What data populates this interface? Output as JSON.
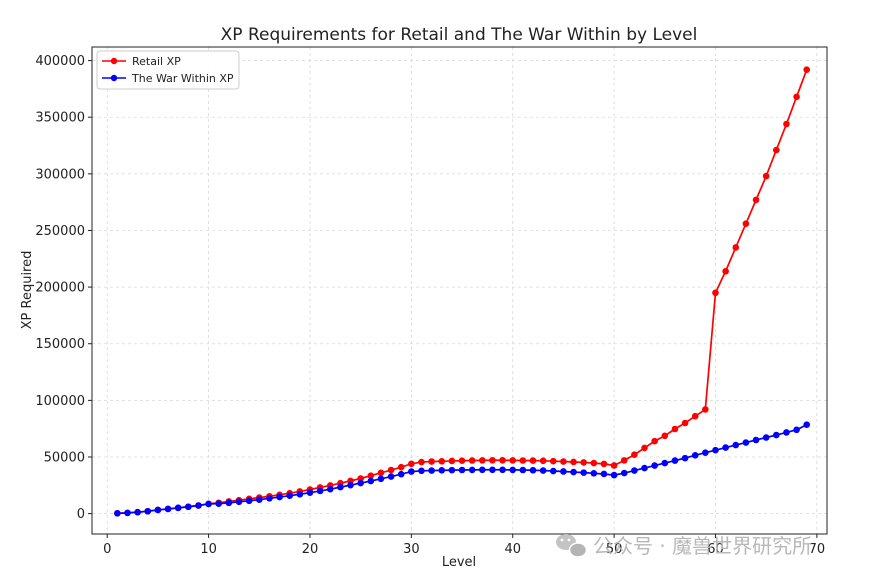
{
  "chart_data": {
    "type": "line",
    "title": "XP Requirements for Retail and The War Within by Level",
    "xlabel": "Level",
    "ylabel": "XP Required",
    "xlim": [
      -1.5,
      71
    ],
    "ylim": [
      -18000,
      412000
    ],
    "xticks": [
      0,
      10,
      20,
      30,
      40,
      50,
      60,
      70
    ],
    "yticks": [
      0,
      50000,
      100000,
      150000,
      200000,
      250000,
      300000,
      350000,
      400000
    ],
    "grid": true,
    "legend": "top-left",
    "x": [
      1,
      2,
      3,
      4,
      5,
      6,
      7,
      8,
      9,
      10,
      11,
      12,
      13,
      14,
      15,
      16,
      17,
      18,
      19,
      20,
      21,
      22,
      23,
      24,
      25,
      26,
      27,
      28,
      29,
      30,
      31,
      32,
      33,
      34,
      35,
      36,
      37,
      38,
      39,
      40,
      41,
      42,
      43,
      44,
      45,
      46,
      47,
      48,
      49,
      50,
      51,
      52,
      53,
      54,
      55,
      56,
      57,
      58,
      59,
      60,
      61,
      62,
      63,
      64,
      65,
      66,
      67,
      68,
      69
    ],
    "series": [
      {
        "name": "Retail XP",
        "color": "#ff0000",
        "values": [
          250,
          655,
          1265,
          2085,
          3240,
          4125,
          5085,
          6055,
          7175,
          8580,
          9575,
          10745,
          11845,
          13085,
          14135,
          15315,
          16605,
          18030,
          19590,
          21300,
          23100,
          24900,
          26900,
          28900,
          31000,
          33500,
          36000,
          38500,
          41000,
          44000,
          45500,
          46000,
          46200,
          46500,
          46700,
          46900,
          47000,
          47100,
          47100,
          47000,
          46900,
          46800,
          46600,
          46300,
          46000,
          45600,
          45200,
          44600,
          43900,
          42500,
          47000,
          52000,
          58000,
          64000,
          68700,
          74700,
          80000,
          86000,
          92000,
          195000,
          214000,
          235000,
          256000,
          277000,
          298000,
          321000,
          344000,
          368000,
          392000
        ]
      },
      {
        "name": "The War Within XP",
        "color": "#0000ff",
        "values": [
          250,
          655,
          1265,
          2085,
          3240,
          4125,
          5085,
          6055,
          7175,
          8580,
          8800,
          9500,
          10400,
          11300,
          12300,
          13500,
          14600,
          15800,
          17100,
          18500,
          20000,
          21600,
          23400,
          25100,
          27000,
          28800,
          30700,
          32700,
          34800,
          37100,
          37800,
          38000,
          38200,
          38400,
          38500,
          38600,
          38700,
          38700,
          38700,
          38600,
          38500,
          38300,
          38000,
          37600,
          37200,
          36700,
          36200,
          35600,
          35000,
          34000,
          35800,
          38000,
          40200,
          42400,
          44600,
          46800,
          49000,
          51500,
          53800,
          56000,
          58300,
          60500,
          62700,
          65000,
          67200,
          69400,
          71700,
          74000,
          78500
        ]
      }
    ]
  },
  "watermark": {
    "icon": "wechat-icon",
    "text": "公众号 · 魔兽世界研究所"
  }
}
